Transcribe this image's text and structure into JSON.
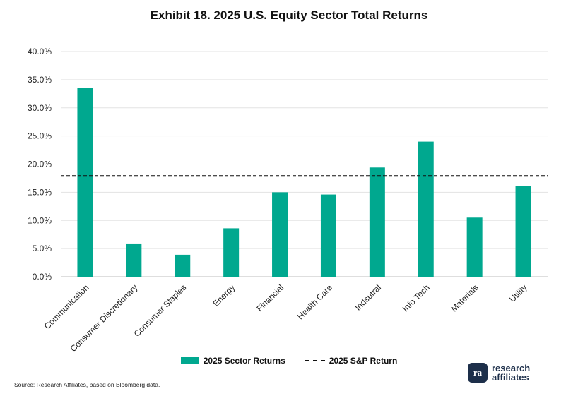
{
  "chart_data": {
    "type": "bar",
    "title": "Exhibit 18. 2025 U.S. Equity Sector Total Returns",
    "categories": [
      "Communication",
      "Consumer Discretionary",
      "Consumer Staples",
      "Energy",
      "Financial",
      "Health Care",
      "Indsutral",
      "Info Tech",
      "Materials",
      "Utility"
    ],
    "series": [
      {
        "name": "2025 Sector Returns",
        "values": [
          33.6,
          5.9,
          3.9,
          8.6,
          15.0,
          14.6,
          19.4,
          24.0,
          10.5,
          16.1
        ],
        "color": "#00a88f"
      }
    ],
    "reference_line": {
      "name": "2025 S&P Return",
      "value": 17.9,
      "style": "dashed",
      "color": "#111111"
    },
    "ylim": [
      0,
      40
    ],
    "yticks": [
      0,
      5,
      10,
      15,
      20,
      25,
      30,
      35,
      40
    ],
    "ytick_format": "percent_1dp",
    "grid": true,
    "legend_position": "bottom"
  },
  "legend": {
    "bars_label": "2025 Sector Returns",
    "line_label": "2025 S&P Return"
  },
  "footer": {
    "source": "Source: Research Affiliates, based on Bloomberg data.",
    "logo_line1": "research",
    "logo_line2": "affiliates",
    "logo_mark": "ra"
  }
}
